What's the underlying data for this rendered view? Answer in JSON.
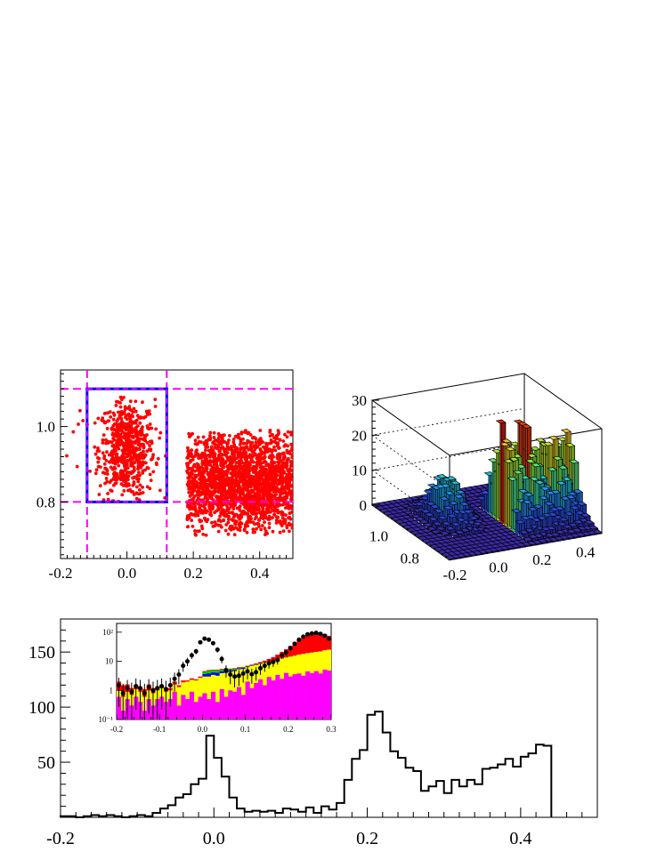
{
  "chart_data": [
    {
      "id": "scatter",
      "type": "scatter",
      "title": "",
      "xlabel": "",
      "ylabel": "",
      "xlim": [
        -0.2,
        0.5
      ],
      "ylim": [
        0.65,
        1.15
      ],
      "xticks": [
        "-0.2",
        "0.0",
        "0.2",
        "0.4"
      ],
      "yticks": [
        "0.8",
        "1.0"
      ],
      "cuts": {
        "x_lines": [
          -0.12,
          0.12
        ],
        "y_lines": [
          0.8,
          1.1
        ]
      },
      "selection_box": {
        "x": [
          -0.12,
          0.12
        ],
        "y": [
          0.8,
          1.1
        ]
      },
      "clusters": [
        {
          "cx": 0.0,
          "cy": 0.94,
          "sx": 0.042,
          "sy": 0.065,
          "x": [
            -0.12,
            0.12
          ],
          "y": [
            0.8,
            1.08
          ],
          "n": 620
        },
        {
          "cx": 0.36,
          "cy": 0.85,
          "sx": 0.16,
          "sy": 0.07,
          "x": [
            0.18,
            0.5
          ],
          "y": [
            0.71,
            0.99
          ],
          "n": 2100
        },
        {
          "cx": -0.17,
          "cy": 1.0,
          "sx": 0.02,
          "sy": 0.06,
          "x": [
            -0.2,
            -0.12
          ],
          "y": [
            0.85,
            1.08
          ],
          "n": 6
        }
      ],
      "colors": {
        "points": "#ff0000",
        "cuts": "#ff00ff",
        "box": "#0000ff"
      }
    },
    {
      "id": "lego3d",
      "type": "bar3d",
      "title": "",
      "xlim": [
        -0.2,
        0.5
      ],
      "ylim": [
        0.65,
        1.15
      ],
      "zlim": [
        0,
        30
      ],
      "zticks": [
        "0",
        "10",
        "20",
        "30"
      ],
      "xticks": [
        "-0.2",
        "0.0",
        "0.2",
        "0.4"
      ],
      "yticks": [
        "0.8",
        "1.0"
      ],
      "peaks": [
        {
          "x": 0.0,
          "y": 0.95,
          "height": 12
        },
        {
          "x": 0.27,
          "y": 0.88,
          "height": 25
        },
        {
          "x": 0.43,
          "y": 0.85,
          "height": 28
        }
      ]
    },
    {
      "id": "projection",
      "type": "histogram",
      "title": "",
      "xlabel": "",
      "ylabel": "",
      "xlim": [
        -0.2,
        0.5
      ],
      "ylim": [
        0,
        180
      ],
      "xticks": [
        "-0.2",
        "0.0",
        "0.2",
        "0.4"
      ],
      "yticks": [
        "50",
        "100",
        "150"
      ],
      "bin_width": 0.01,
      "values": [
        1,
        1,
        0,
        1,
        2,
        1,
        2,
        1,
        0,
        1,
        2,
        1,
        4,
        8,
        11,
        18,
        21,
        30,
        35,
        74,
        54,
        37,
        18,
        8,
        5,
        6,
        5,
        6,
        4,
        8,
        7,
        5,
        9,
        4,
        10,
        7,
        13,
        34,
        53,
        61,
        93,
        96,
        77,
        60,
        54,
        45,
        42,
        24,
        28,
        33,
        22,
        34,
        28,
        34,
        30,
        44,
        45,
        48,
        53,
        46,
        55,
        58,
        66,
        65
      ],
      "bin_start": -0.2
    },
    {
      "id": "inset",
      "type": "stacked_histogram_log",
      "xlim": [
        -0.2,
        0.3
      ],
      "ylim_log": [
        0.1,
        200
      ],
      "xticks": [
        "-0.2",
        "-0.1",
        "0.0",
        "0.1",
        "0.2",
        "0.3"
      ],
      "yticks": [
        "10⁻¹",
        "1",
        "10",
        "10²"
      ],
      "bin_start": -0.2,
      "bin_width": 0.01,
      "magenta": [
        0.6,
        0.2,
        0.5,
        0.3,
        0.6,
        0.4,
        0.2,
        0.5,
        0.3,
        0.5,
        0.6,
        0.4,
        0.5,
        0.9,
        0.3,
        0.7,
        0.5,
        0.9,
        0.4,
        0.6,
        0.8,
        0.5,
        0.9,
        0.4,
        1.1,
        0.6,
        1.0,
        0.9,
        1.3,
        0.7,
        2.0,
        1.2,
        1.8,
        2.4,
        1.5,
        2.9,
        2.2,
        3.4,
        2.5,
        4.0,
        3.0,
        3.6,
        3.8,
        3.2,
        4.5,
        3.9,
        4.6,
        3.8,
        5.2,
        4.8
      ],
      "yellow": [
        1.0,
        0.6,
        0.9,
        0.7,
        1.1,
        0.9,
        0.6,
        1.0,
        0.8,
        1.0,
        1.2,
        0.9,
        1.0,
        1.6,
        1.3,
        1.9,
        2.0,
        2.3,
        2.2,
        2.7,
        3.0,
        3.0,
        3.4,
        3.2,
        3.9,
        4.0,
        4.3,
        4.6,
        5.3,
        5.5,
        6.3,
        6.9,
        7.5,
        8.2,
        8.9,
        9.8,
        10.5,
        11.5,
        12.5,
        13.5,
        14.5,
        15.5,
        17,
        18,
        19,
        20,
        21,
        22,
        24,
        25
      ],
      "blue": [
        1.0,
        0.6,
        0.9,
        0.7,
        1.1,
        0.9,
        0.6,
        1.0,
        0.8,
        1.0,
        1.2,
        0.9,
        1.0,
        1.6,
        1.3,
        1.9,
        2.0,
        2.3,
        2.2,
        2.7,
        3.6,
        3.8,
        4.1,
        4.0,
        4.5,
        4.5,
        4.8,
        5.0,
        5.7,
        5.9,
        6.5,
        7.1,
        7.7,
        8.4,
        9.0,
        9.9,
        10.6,
        11.6,
        12.6,
        13.6,
        14.6,
        15.6,
        17,
        18,
        19,
        20,
        21,
        22,
        24,
        25
      ],
      "green": [
        1.0,
        0.6,
        0.9,
        0.7,
        1.1,
        0.9,
        0.6,
        1.0,
        0.8,
        1.0,
        1.2,
        0.9,
        1.0,
        1.6,
        1.3,
        1.9,
        2.0,
        2.3,
        2.2,
        2.7,
        4.3,
        4.7,
        5.0,
        4.8,
        5.2,
        5.1,
        5.4,
        5.5,
        6.1,
        6.2,
        6.7,
        7.3,
        7.9,
        8.6,
        9.1,
        10,
        10.7,
        11.7,
        12.7,
        13.7,
        14.7,
        15.7,
        17,
        18,
        19,
        20,
        21,
        22,
        24,
        25
      ],
      "red": [
        2.0,
        1.5,
        1.6,
        1.2,
        1.5,
        1.3,
        1.1,
        1.6,
        1.2,
        1.3,
        1.5,
        1.2,
        1.2,
        2.0,
        1.5,
        2.2,
        2.2,
        2.6,
        2.4,
        3.0,
        4.6,
        5.0,
        5.2,
        5.1,
        5.5,
        5.3,
        5.6,
        5.8,
        6.3,
        6.4,
        7.0,
        7.7,
        8.5,
        9.5,
        10.5,
        12,
        14,
        17,
        21,
        26,
        34,
        44,
        58,
        72,
        85,
        95,
        100,
        95,
        85,
        75
      ],
      "data": [
        1.5,
        0.8,
        1.2,
        0.9,
        1.4,
        1.2,
        0.8,
        1.3,
        1.0,
        1.2,
        1.4,
        1.1,
        1.5,
        2.5,
        3.5,
        7,
        10,
        16,
        22,
        45,
        60,
        55,
        42,
        25,
        12,
        5,
        3.5,
        3,
        3.2,
        3.8,
        4.5,
        3.6,
        4.2,
        5.8,
        7,
        8.5,
        9.5,
        11,
        16,
        20,
        28,
        40,
        55,
        70,
        85,
        90,
        95,
        88,
        75,
        60
      ],
      "colors": {
        "magenta": "#ff00ff",
        "yellow": "#ffff00",
        "blue": "#0000ff",
        "green": "#00cc00",
        "red": "#ff0000",
        "data": "#000000"
      }
    }
  ]
}
